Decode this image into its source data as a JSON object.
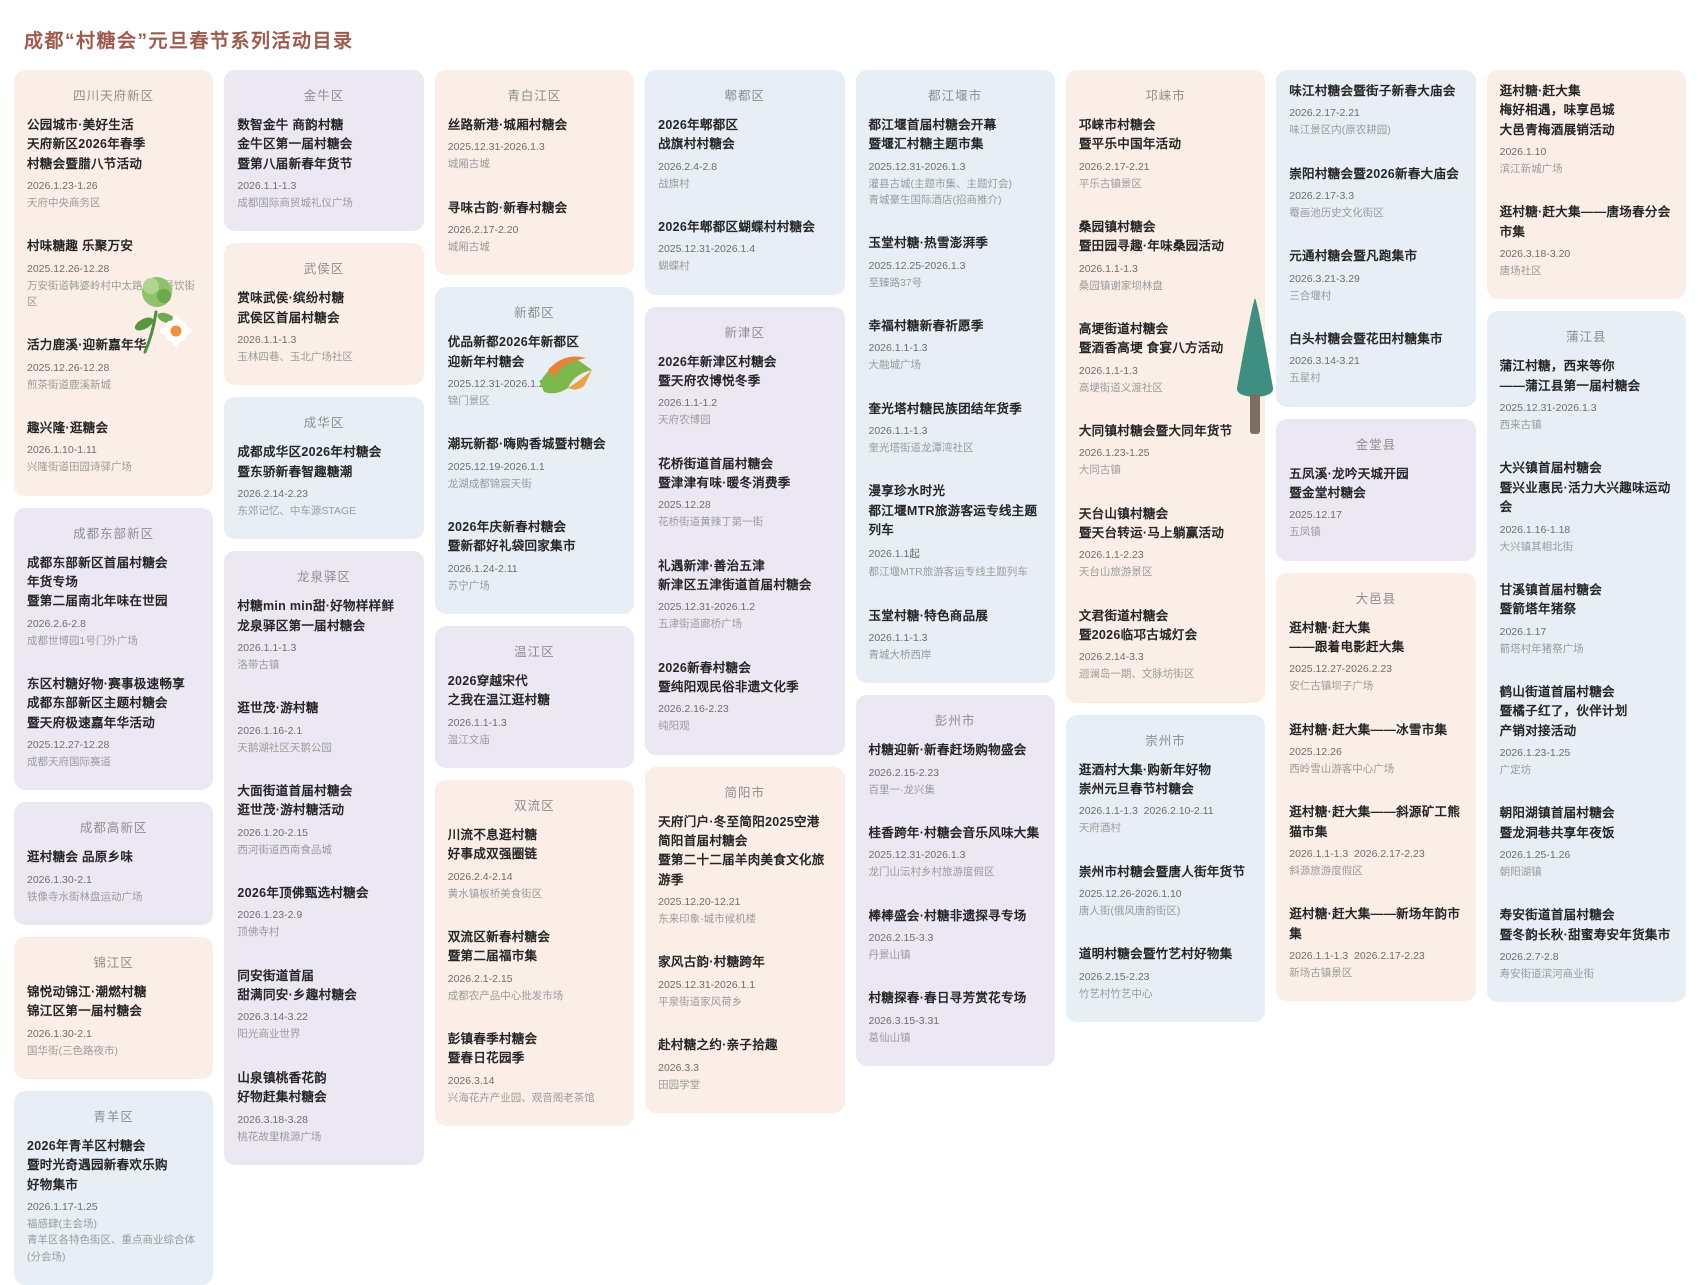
{
  "title": "成都“村糖会”元旦春节系列活动目录",
  "colors": {
    "accent_title": "#9d5b4d",
    "card_peach": "#fbeee7",
    "card_lavender": "#ebe8f3",
    "card_blue": "#e7eef5"
  },
  "illustrations": [
    "flower-illustration",
    "bird-illustration",
    "pine-tree-illustration"
  ],
  "columns": [
    {
      "cards": [
        {
          "district": "四川天府新区",
          "color": "peach",
          "events": [
            {
              "title": "公园城市·美好生活\n天府新区2026年春季\n村糖会暨腊八节活动",
              "date": "2026.1.23-1.26",
              "locations": [
                "天府中央商务区"
              ]
            },
            {
              "title": "村味糖趣 乐聚万安",
              "date": "2025.12.26-12.28",
              "locations": [
                "万安街道韩婆岭村中太路乡村餐饮街区"
              ]
            },
            {
              "title": "活力鹿溪·迎新嘉年华",
              "date": "2025.12.26-12.28",
              "locations": [
                "煎茶街道鹿溪新城"
              ]
            },
            {
              "title": "趣兴隆·逛糖会",
              "date": "2026.1.10-1.11",
              "locations": [
                "兴隆街道田园诗驿广场"
              ]
            }
          ]
        },
        {
          "district": "成都东部新区",
          "color": "lavender",
          "events": [
            {
              "title": "成都东部新区首届村糖会\n年货专场\n暨第二届南北年味在世园",
              "date": "2026.2.6-2.8",
              "locations": [
                "成都世博园1号门外广场"
              ]
            },
            {
              "title": "东区村糖好物·赛事极速畅享\n成都东部新区主题村糖会\n暨天府极速嘉年华活动",
              "date": "2025.12.27-12.28",
              "locations": [
                "成都天府国际赛道"
              ]
            }
          ]
        },
        {
          "district": "成都高新区",
          "color": "lavender",
          "events": [
            {
              "title": "逛村糖会 品原乡味",
              "date": "2026.1.30-2.1",
              "locations": [
                "铁像寺水街林盘运动广场"
              ]
            }
          ]
        },
        {
          "district": "锦江区",
          "color": "peach",
          "events": [
            {
              "title": "锦悦动锦江·潮燃村糖\n锦江区第一届村糖会",
              "date": "2026.1.30-2.1",
              "locations": [
                "国华街(三色路夜市)"
              ]
            }
          ]
        },
        {
          "district": "青羊区",
          "color": "blue",
          "events": [
            {
              "title": "2026年青羊区村糖会\n暨时光奇遇园新春欢乐购\n好物集市",
              "date": "2026.1.17-1.25",
              "locations": [
                "福感肆(主会场)",
                "青羊区各特色街区、重点商业综合体(分会场)"
              ]
            }
          ]
        }
      ]
    },
    {
      "cards": [
        {
          "district": "金牛区",
          "color": "lavender",
          "events": [
            {
              "title": "数智金牛 商韵村糖\n金牛区第一届村糖会\n暨第八届新春年货节",
              "date": "2026.1.1-1.3",
              "locations": [
                "成都国际商贸城礼仪广场"
              ]
            }
          ]
        },
        {
          "district": "武侯区",
          "color": "peach",
          "events": [
            {
              "title": "赏味武侯·缤纷村糖\n武侯区首届村糖会",
              "date": "2026.1.1-1.3",
              "locations": [
                "玉林四巷、玉北广场社区"
              ]
            }
          ]
        },
        {
          "district": "成华区",
          "color": "blue",
          "events": [
            {
              "title": "成都成华区2026年村糖会\n暨东骄新春智趣糖潮",
              "date": "2026.2.14-2.23",
              "locations": [
                "东郊记忆、中车源STAGE"
              ]
            }
          ]
        },
        {
          "district": "龙泉驿区",
          "color": "lavender",
          "events": [
            {
              "title": "村糖min min甜·好物样样鲜\n龙泉驿区第一届村糖会",
              "date": "2026.1.1-1.3",
              "locations": [
                "洛带古镇"
              ]
            },
            {
              "title": "逛世茂·游村糖",
              "date": "2026.1.16-2.1",
              "locations": [
                "天鹅湖社区天鹅公园"
              ]
            },
            {
              "title": "大面街道首届村糖会\n逛世茂·游村糖活动",
              "date": "2026.1.20-2.15",
              "locations": [
                "西河街道西南食品城"
              ]
            },
            {
              "title": "2026年顶佛甄选村糖会",
              "date": "2026.1.23-2.9",
              "locations": [
                "顶佛寺村"
              ]
            },
            {
              "title": "同安街道首届\n甜满同安·乡趣村糖会",
              "date": "2026.3.14-3.22",
              "locations": [
                "阳光商业世界"
              ]
            },
            {
              "title": "山泉镇桃香花韵\n好物赶集村糖会",
              "date": "2026.3.18-3.28",
              "locations": [
                "桃花故里桃源广场"
              ]
            }
          ]
        }
      ]
    },
    {
      "cards": [
        {
          "district": "青白江区",
          "color": "peach",
          "events": [
            {
              "title": "丝路新港·城厢村糖会",
              "date": "2025.12.31-2026.1.3",
              "locations": [
                "城厢古城"
              ]
            },
            {
              "title": "寻味古韵·新春村糖会",
              "date": "2026.2.17-2.20",
              "locations": [
                "城厢古城"
              ]
            }
          ]
        },
        {
          "district": "新都区",
          "color": "blue",
          "events": [
            {
              "title": "优品新都2026年新都区\n迎新年村糖会",
              "date": "2025.12.31-2026.1.2",
              "locations": [
                "锦门景区"
              ]
            },
            {
              "title": "潮玩新都·嗨购香城暨村糖会",
              "date": "2025.12.19-2026.1.1",
              "locations": [
                "龙湖成都锦宸天街"
              ]
            },
            {
              "title": "2026年庆新春村糖会\n暨新都好礼袋回家集市",
              "date": "2026.1.24-2.11",
              "locations": [
                "苏宁广场"
              ]
            }
          ]
        },
        {
          "district": "温江区",
          "color": "lavender",
          "events": [
            {
              "title": "2026穿越宋代\n之我在温江逛村糖",
              "date": "2026.1.1-1.3",
              "locations": [
                "温江文庙"
              ]
            }
          ]
        },
        {
          "district": "双流区",
          "color": "peach",
          "events": [
            {
              "title": "川流不息逛村糖\n好事成双强圈链",
              "date": "2026.2.4-2.14",
              "locations": [
                "黄水镇板桥美食街区"
              ]
            },
            {
              "title": "双流区新春村糖会\n暨第二届福市集",
              "date": "2026.2.1-2.15",
              "locations": [
                "成都农产品中心批发市场"
              ]
            },
            {
              "title": "彭镇春季村糖会\n暨春日花园季",
              "date": "2026.3.14",
              "locations": [
                "兴海花卉产业园、观音阁老茶馆"
              ]
            }
          ]
        }
      ]
    },
    {
      "cards": [
        {
          "district": "郫都区",
          "color": "blue",
          "events": [
            {
              "title": "2026年郫都区\n战旗村村糖会",
              "date": "2026.2.4-2.8",
              "locations": [
                "战旗村"
              ]
            },
            {
              "title": "2026年郫都区蝴蝶村村糖会",
              "date": "2025.12.31-2026.1.4",
              "locations": [
                "蝴蝶村"
              ]
            }
          ]
        },
        {
          "district": "新津区",
          "color": "lavender",
          "events": [
            {
              "title": "2026年新津区村糖会\n暨天府农博悦冬季",
              "date": "2026.1.1-1.2",
              "locations": [
                "天府农博园"
              ]
            },
            {
              "title": "花桥街道首届村糖会\n暨津津有味·暖冬消费季",
              "date": "2025.12.28",
              "locations": [
                "花桥街道黄辣丁第一街"
              ]
            },
            {
              "title": "礼遇新津·善治五津\n新津区五津街道首届村糖会",
              "date": "2025.12.31-2026.1.2",
              "locations": [
                "五津街道廊桥广场"
              ]
            },
            {
              "title": "2026新春村糖会\n暨纯阳观民俗非遗文化季",
              "date": "2026.2.16-2.23",
              "locations": [
                "纯阳观"
              ]
            }
          ]
        },
        {
          "district": "简阳市",
          "color": "peach",
          "events": [
            {
              "title": "天府门户·冬至简阳2025空港\n简阳首届村糖会\n暨第二十二届羊肉美食文化旅游季",
              "date": "2025.12.20-12.21",
              "locations": [
                "东来印象-城市候机楼"
              ]
            },
            {
              "title": "家风古韵·村糖跨年",
              "date": "2025.12.31-2026.1.1",
              "locations": [
                "平泉街道家风荷乡"
              ]
            },
            {
              "title": "赴村糖之约·亲子拾趣",
              "date": "2026.3.3",
              "locations": [
                "田园学堂"
              ]
            }
          ]
        }
      ]
    },
    {
      "cards": [
        {
          "district": "都江堰市",
          "color": "blue",
          "events": [
            {
              "title": "都江堰首届村糖会开幕\n暨堰汇村糖主题市集",
              "date": "2025.12.31-2026.1.3",
              "locations": [
                "灌县古城(主题市集、主题灯会)",
                "青城豪生国际酒店(招商推介)"
              ]
            },
            {
              "title": "玉堂村糖·热雪澎湃季",
              "date": "2025.12.25-2026.1.3",
              "locations": [
                "至臻路37号"
              ]
            },
            {
              "title": "幸福村糖新春祈愿季",
              "date": "2026.1.1-1.3",
              "locations": [
                "大融城广场"
              ]
            },
            {
              "title": "奎光塔村糖民族团结年货季",
              "date": "2026.1.1-1.3",
              "locations": [
                "奎光塔街道龙潭湾社区"
              ]
            },
            {
              "title": "漫享珍水时光\n都江堰MTR旅游客运专线主题列车",
              "date": "2026.1.1起",
              "locations": [
                "都江堰MTR旅游客运专线主题列车"
              ]
            },
            {
              "title": "玉堂村糖·特色商品展",
              "date": "2026.1.1-1.3",
              "locations": [
                "青城大桥西岸"
              ]
            }
          ]
        },
        {
          "district": "彭州市",
          "color": "lavender",
          "events": [
            {
              "title": "村糖迎新·新春赶场购物盛会",
              "date": "2026.2.15-2.23",
              "locations": [
                "百里一·龙兴集"
              ]
            },
            {
              "title": "桂香跨年·村糖会音乐风味大集",
              "date": "2025.12.31-2026.1.3",
              "locations": [
                "龙门山沄村乡村旅游度假区"
              ]
            },
            {
              "title": "棒棒盛会·村糖非遗探寻专场",
              "date": "2026.2.15-3.3",
              "locations": [
                "丹景山镇"
              ]
            },
            {
              "title": "村糖探春·春日寻芳赏花专场",
              "date": "2026.3.15-3.31",
              "locations": [
                "葛仙山镇"
              ]
            }
          ]
        }
      ]
    },
    {
      "cards": [
        {
          "district": "邛崃市",
          "color": "peach",
          "events": [
            {
              "title": "邛崃市村糖会\n暨平乐中国年活动",
              "date": "2026.2.17-2.21",
              "locations": [
                "平乐古镇景区"
              ]
            },
            {
              "title": "桑园镇村糖会\n暨田园寻趣·年味桑园活动",
              "date": "2026.1.1-1.3",
              "locations": [
                "桑园镇谢家坝林盘"
              ]
            },
            {
              "title": "高埂街道村糖会\n暨酒香高埂 食宴八方活动",
              "date": "2026.1.1-1.3",
              "locations": [
                "高埂街道义渡社区"
              ]
            },
            {
              "title": "大同镇村糖会暨大同年货节",
              "date": "2026.1.23-1.25",
              "locations": [
                "大同古镇"
              ]
            },
            {
              "title": "天台山镇村糖会\n暨天台转运·马上躺赢活动",
              "date": "2026.1.1-2.23",
              "locations": [
                "天台山旅游景区"
              ]
            },
            {
              "title": "文君街道村糖会\n暨2026临邛古城灯会",
              "date": "2026.2.14-3.3",
              "locations": [
                "迴澜岛一期、文脉坊街区"
              ]
            }
          ]
        },
        {
          "district": "崇州市",
          "color": "blue",
          "events": [
            {
              "title": "逛酒村大集·购新年好物\n崇州元旦春节村糖会",
              "date": "2026.1.1-1.3  2026.2.10-2.11",
              "locations": [
                "天府酒村"
              ]
            },
            {
              "title": "崇州市村糖会暨唐人街年货节",
              "date": "2025.12.26-2026.1.10",
              "locations": [
                "唐人街(俄风唐韵街区)"
              ]
            },
            {
              "title": "道明村糖会暨竹艺村好物集",
              "date": "2026.2.15-2.23",
              "locations": [
                "竹艺村竹艺中心"
              ]
            }
          ]
        }
      ]
    },
    {
      "cards": [
        {
          "district": "",
          "color": "blue",
          "events": [
            {
              "title": "味江村糖会暨街子新春大庙会",
              "date": "2026.2.17-2.21",
              "locations": [
                "味江景区内(原农耕园)"
              ]
            },
            {
              "title": "崇阳村糖会暨2026新春大庙会",
              "date": "2026.2.17-3.3",
              "locations": [
                "罨画池历史文化街区"
              ]
            },
            {
              "title": "元通村糖会暨凡跑集市",
              "date": "2026.3.21-3.29",
              "locations": [
                "三合堰村"
              ]
            },
            {
              "title": "白头村糖会暨花田村糖集市",
              "date": "2026.3.14-3.21",
              "locations": [
                "五星村"
              ]
            }
          ]
        },
        {
          "district": "金堂县",
          "color": "lavender",
          "events": [
            {
              "title": "五凤溪·龙吟天城开园\n暨金堂村糖会",
              "date": "2025.12.17",
              "locations": [
                "五凤镇"
              ]
            }
          ]
        },
        {
          "district": "大邑县",
          "color": "peach",
          "events": [
            {
              "title": "逛村糖·赶大集\n——跟着电影赶大集",
              "date": "2025.12.27-2026.2.23",
              "locations": [
                "安仁古镇坝子广场"
              ]
            },
            {
              "title": "逛村糖·赶大集——冰雪市集",
              "date": "2025.12.26",
              "locations": [
                "西岭雪山游客中心广场"
              ]
            },
            {
              "title": "逛村糖·赶大集——斜源矿工熊猫市集",
              "date": "2026.1.1-1.3  2026.2.17-2.23",
              "locations": [
                "斜源旅游度假区"
              ]
            },
            {
              "title": "逛村糖·赶大集——新场年韵市集",
              "date": "2026.1.1-1.3  2026.2.17-2.23",
              "locations": [
                "新场古镇景区"
              ]
            }
          ]
        }
      ]
    },
    {
      "cards": [
        {
          "district": "",
          "color": "peach",
          "events": [
            {
              "title": "逛村糖·赶大集\n梅好相遇，味享邑城\n大邑青梅酒展销活动",
              "date": "2026.1.10",
              "locations": [
                "滨江新城广场"
              ]
            },
            {
              "title": "逛村糖·赶大集——唐场春分会市集",
              "date": "2026.3.18-3.20",
              "locations": [
                "唐场社区"
              ]
            }
          ]
        },
        {
          "district": "蒲江县",
          "color": "blue",
          "events": [
            {
              "title": "蒲江村糖，西来等你\n——蒲江县第一届村糖会",
              "date": "2025.12.31-2026.1.3",
              "locations": [
                "西来古镇"
              ]
            },
            {
              "title": "大兴镇首届村糖会\n暨兴业惠民·活力大兴趣味运动会",
              "date": "2026.1.16-1.18",
              "locations": [
                "大兴镇其相北街"
              ]
            },
            {
              "title": "甘溪镇首届村糖会\n暨箭塔年猪祭",
              "date": "2026.1.17",
              "locations": [
                "箭塔村年猪祭广场"
              ]
            },
            {
              "title": "鹤山街道首届村糖会\n暨橘子红了，伙伴计划\n产销对接活动",
              "date": "2026.1.23-1.25",
              "locations": [
                "广定坊"
              ]
            },
            {
              "title": "朝阳湖镇首届村糖会\n暨龙洞巷共享年夜饭",
              "date": "2026.1.25-1.26",
              "locations": [
                "朝阳湖镇"
              ]
            },
            {
              "title": "寿安街道首届村糖会\n暨冬韵长秋·甜蜜寿安年货集市",
              "date": "2026.2.7-2.8",
              "locations": [
                "寿安街道滨河商业街"
              ]
            }
          ]
        }
      ]
    }
  ]
}
